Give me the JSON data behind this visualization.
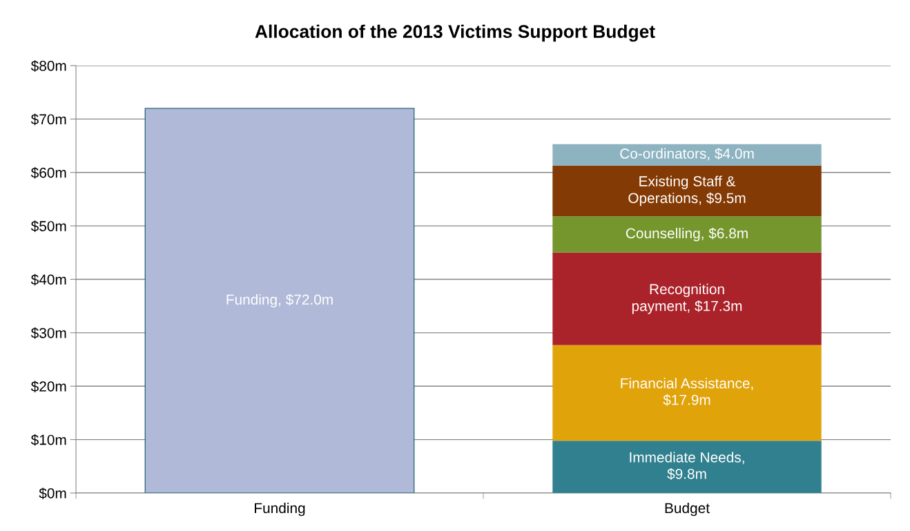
{
  "chart_data": {
    "type": "bar",
    "title": "Allocation of the 2013 Victims Support Budget",
    "categories": [
      "Funding",
      "Budget"
    ],
    "stacked": true,
    "series": [
      {
        "color": "#b0b9d8",
        "values": [
          72.0,
          null
        ],
        "value_labels": [
          "Funding, $72.0m",
          null
        ]
      },
      {
        "color": "#31808f",
        "values": [
          null,
          9.8
        ],
        "value_labels": [
          null,
          "Immediate Needs,\n$9.8m"
        ]
      },
      {
        "color": "#e0a30a",
        "values": [
          null,
          17.9
        ],
        "value_labels": [
          null,
          "Financial Assistance,\n$17.9m"
        ]
      },
      {
        "color": "#ab232a",
        "values": [
          null,
          17.3
        ],
        "value_labels": [
          null,
          "Recognition\npayment, $17.3m"
        ]
      },
      {
        "color": "#74962d",
        "values": [
          null,
          6.8
        ],
        "value_labels": [
          null,
          "Counselling, $6.8m"
        ]
      },
      {
        "color": "#833a04",
        "values": [
          null,
          9.5
        ],
        "value_labels": [
          null,
          "Existing Staff &\nOperations, $9.5m"
        ]
      },
      {
        "color": "#8db3c1",
        "values": [
          null,
          4.0
        ],
        "value_labels": [
          null,
          "Co-ordinators, $4.0m"
        ]
      }
    ],
    "ylim": [
      0,
      80
    ],
    "yticks": [
      {
        "value": 0,
        "label": "$0m"
      },
      {
        "value": 10,
        "label": "$10m"
      },
      {
        "value": 20,
        "label": "$20m"
      },
      {
        "value": 30,
        "label": "$30m"
      },
      {
        "value": 40,
        "label": "$40m"
      },
      {
        "value": 50,
        "label": "$50m"
      },
      {
        "value": 60,
        "label": "$60m"
      },
      {
        "value": 70,
        "label": "$70m"
      },
      {
        "value": 80,
        "label": "$80m"
      }
    ],
    "grid": "y",
    "legend": false
  }
}
